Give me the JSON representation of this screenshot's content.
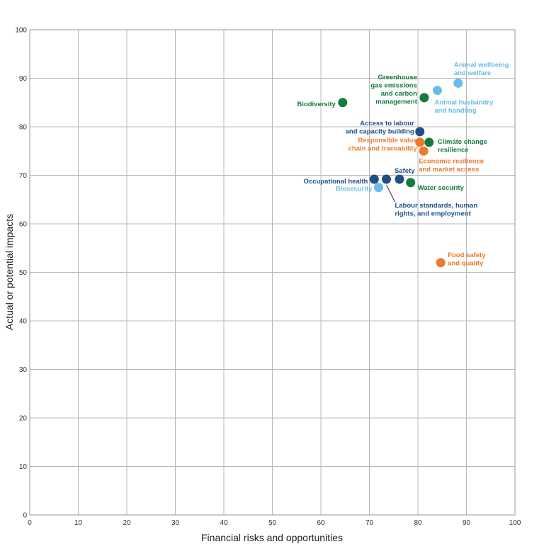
{
  "chart_data": {
    "type": "scatter",
    "title": "",
    "xlabel": "Financial risks and opportunities",
    "ylabel": "Actual or potential impacts",
    "xlim": [
      0,
      100
    ],
    "ylim": [
      0,
      100
    ],
    "x_ticks": [
      "0",
      "10",
      "20",
      "30",
      "40",
      "50",
      "60",
      "70",
      "80",
      "90",
      "100"
    ],
    "y_ticks": [
      "0",
      "10",
      "20",
      "30",
      "40",
      "50",
      "60",
      "70",
      "80",
      "90",
      "100"
    ],
    "grid": true,
    "colors": {
      "dark_green": "#157a3e",
      "light_blue": "#66bde8",
      "navy": "#1e4f85",
      "orange": "#ea7a2c"
    },
    "points": [
      {
        "label": [
          "Biodiversity"
        ],
        "x": 64.5,
        "y": 85,
        "color": "dark_green"
      },
      {
        "label": [
          "Greenhouse",
          "gas emissions",
          "and carbon",
          "management"
        ],
        "x": 81.3,
        "y": 86,
        "color": "dark_green"
      },
      {
        "label": [
          "Animal husbandry",
          "and handling"
        ],
        "x": 84.0,
        "y": 87.5,
        "color": "light_blue"
      },
      {
        "label": [
          "Animal wellbeing",
          "and welfare"
        ],
        "x": 88.3,
        "y": 89,
        "color": "light_blue"
      },
      {
        "label": [
          "Access to labour",
          "and capacity building"
        ],
        "x": 80.4,
        "y": 79,
        "color": "navy"
      },
      {
        "label": [
          "Climate change",
          "resilience"
        ],
        "x": 82.3,
        "y": 76.8,
        "color": "dark_green"
      },
      {
        "label": [
          "Responsible value",
          "chain and traceability"
        ],
        "x": 80.4,
        "y": 76.8,
        "color": "orange"
      },
      {
        "label": [
          "Economic resilience",
          "and market access"
        ],
        "x": 81.2,
        "y": 75,
        "color": "orange"
      },
      {
        "label": [
          "Occupational health"
        ],
        "x": 71.0,
        "y": 69.2,
        "color": "navy"
      },
      {
        "label": [
          "Labour standards, human",
          "rights, and employment"
        ],
        "x": 73.5,
        "y": 69.2,
        "color": "navy"
      },
      {
        "label": [
          "Safety"
        ],
        "x": 76.2,
        "y": 69.2,
        "color": "navy"
      },
      {
        "label": [
          "Water security"
        ],
        "x": 78.5,
        "y": 68.5,
        "color": "dark_green"
      },
      {
        "label": [
          "Biosecurity"
        ],
        "x": 71.9,
        "y": 67.5,
        "color": "light_blue"
      },
      {
        "label": [
          "Food safety",
          "and quality"
        ],
        "x": 84.7,
        "y": 52,
        "color": "orange"
      }
    ]
  }
}
